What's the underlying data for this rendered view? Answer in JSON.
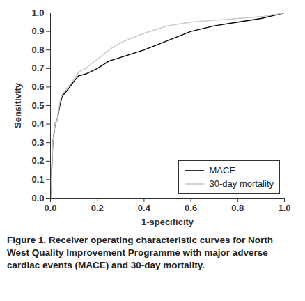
{
  "chart_data": {
    "type": "line",
    "caption": "Figure 1. Receiver operating characteristic curves for North West Quality Improvement Programme with major adverse cardiac events (MACE) and 30-day mortality.",
    "x_label": "1-specificity",
    "y_label": "Sensitivity",
    "x": [
      0,
      0.005,
      0.01,
      0.02,
      0.03,
      0.04,
      0.05,
      0.07,
      0.1,
      0.12,
      0.15,
      0.2,
      0.25,
      0.3,
      0.4,
      0.5,
      0.6,
      0.7,
      0.8,
      0.9,
      1.0
    ],
    "series": [
      {
        "name": "MACE",
        "color": "#000000",
        "values": [
          0,
          0.15,
          0.3,
          0.4,
          0.43,
          0.5,
          0.55,
          0.58,
          0.63,
          0.66,
          0.67,
          0.7,
          0.74,
          0.76,
          0.8,
          0.85,
          0.9,
          0.93,
          0.95,
          0.97,
          1.0
        ]
      },
      {
        "name": "30-day mortality",
        "color": "#c8c8c8",
        "values": [
          0,
          0.15,
          0.3,
          0.4,
          0.43,
          0.52,
          0.56,
          0.59,
          0.64,
          0.68,
          0.7,
          0.75,
          0.8,
          0.84,
          0.89,
          0.93,
          0.95,
          0.96,
          0.97,
          0.98,
          1.0
        ]
      }
    ],
    "xlim": [
      0,
      1
    ],
    "ylim": [
      0,
      1
    ],
    "xticks": [
      {
        "value": 0,
        "label": "0.0"
      },
      0.2,
      0.4,
      0.6,
      0.8,
      {
        "value": 1,
        "label": "1.0"
      }
    ],
    "yticks": [
      {
        "value": 0,
        "label": "0.0"
      },
      0.1,
      0.2,
      0.3,
      0.4,
      0.5,
      0.6,
      0.7,
      0.8,
      0.9,
      {
        "value": 1,
        "label": "1.0"
      }
    ],
    "legend": "lower right",
    "grid": false
  }
}
